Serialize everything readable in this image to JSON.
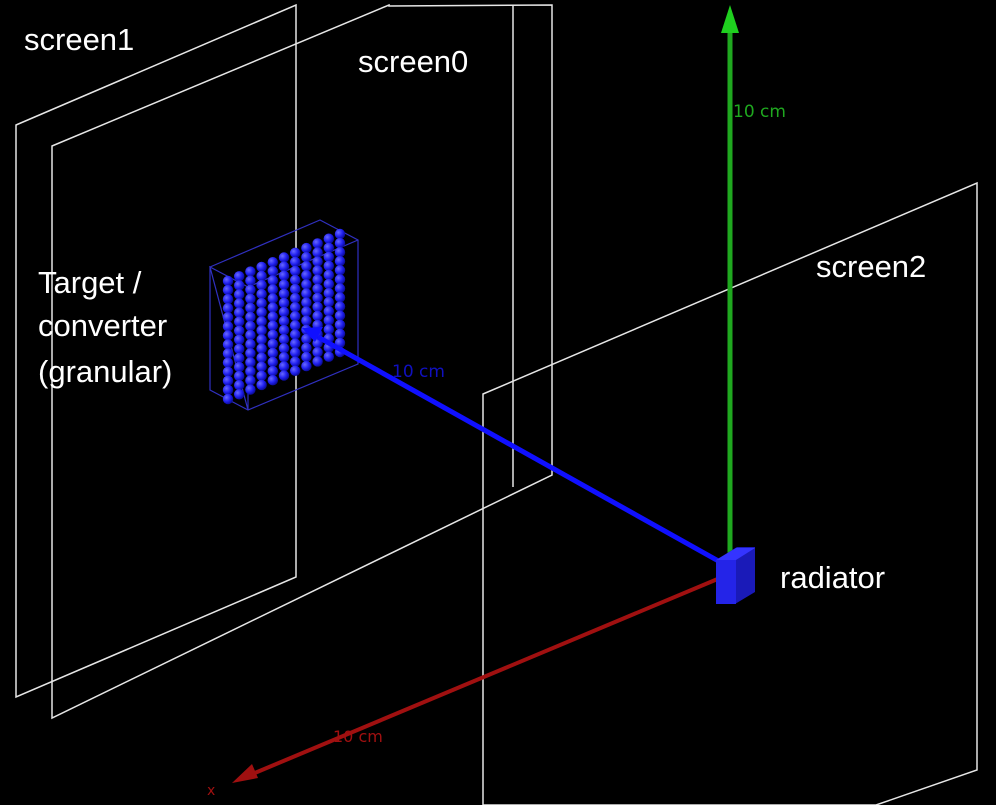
{
  "labels": {
    "screen1": "screen1",
    "screen0": "screen0",
    "screen2": "screen2",
    "target_line1": "Target /",
    "target_line2": "converter",
    "target_line3": "(granular)",
    "radiator": "radiator"
  },
  "axes": {
    "green": {
      "label": "10 cm",
      "color": "#1fa81f"
    },
    "blue": {
      "label": "10 cm",
      "color": "#1010ff"
    },
    "red": {
      "label": "10 cm",
      "color": "#a01010",
      "end_label": "x"
    }
  },
  "colors": {
    "background": "#000000",
    "screen_outline": "#e6e6e6",
    "sphere": "#2020ff",
    "box_outline": "#3030c0",
    "radiator": "#2020e0"
  },
  "target_grid": {
    "rows": 14,
    "cols": 11
  }
}
